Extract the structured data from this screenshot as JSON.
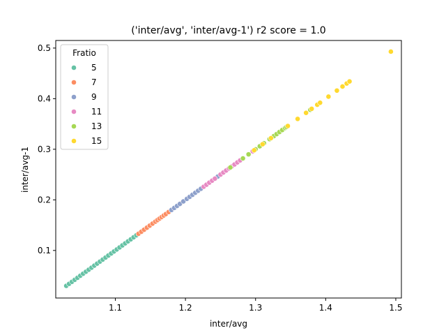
{
  "chart_data": {
    "type": "scatter",
    "title": "('inter/avg', 'inter/avg-1') r2 score = 1.0",
    "xlabel": "inter/avg",
    "ylabel": "inter/avg-1",
    "xlim": [
      1.015,
      1.508
    ],
    "ylim": [
      0.006,
      0.515
    ],
    "xticks": [
      1.1,
      1.2,
      1.3,
      1.4,
      1.5
    ],
    "xtick_labels": [
      "1.1",
      "1.2",
      "1.3",
      "1.4",
      "1.5"
    ],
    "yticks": [
      0.1,
      0.2,
      0.3,
      0.4,
      0.5
    ],
    "ytick_labels": [
      "0.1",
      "0.2",
      "0.3",
      "0.4",
      "0.5"
    ],
    "grid": false,
    "legend": {
      "title": "Fratio",
      "position": "top-left"
    },
    "series": [
      {
        "name": "5",
        "color": "#66c2a5",
        "x": [
          1.03,
          1.034,
          1.038,
          1.042,
          1.046,
          1.05,
          1.054,
          1.058,
          1.062,
          1.066,
          1.07,
          1.074,
          1.078,
          1.082,
          1.086,
          1.09,
          1.094,
          1.098,
          1.102,
          1.106,
          1.11,
          1.114,
          1.118,
          1.122,
          1.126,
          1.13,
          1.14
        ]
      },
      {
        "name": "7",
        "color": "#fc8d62",
        "x": [
          1.133,
          1.137,
          1.141,
          1.145,
          1.149,
          1.153,
          1.157,
          1.16,
          1.163,
          1.166,
          1.169,
          1.172,
          1.176,
          1.18,
          1.193
        ]
      },
      {
        "name": "9",
        "color": "#8da0cb",
        "x": [
          1.18,
          1.184,
          1.188,
          1.192,
          1.197,
          1.202,
          1.206,
          1.21,
          1.214,
          1.218,
          1.222,
          1.246
        ]
      },
      {
        "name": "11",
        "color": "#e78ac3",
        "x": [
          1.226,
          1.23,
          1.234,
          1.238,
          1.242,
          1.25,
          1.254,
          1.258,
          1.262,
          1.266,
          1.27,
          1.274,
          1.278,
          1.282,
          1.296
        ]
      },
      {
        "name": "13",
        "color": "#a6d854",
        "x": [
          1.264,
          1.282,
          1.29,
          1.3,
          1.306,
          1.312,
          1.32,
          1.326,
          1.33,
          1.334,
          1.338,
          1.342,
          1.344,
          1.378
        ]
      },
      {
        "name": "15",
        "color": "#ffd92f",
        "x": [
          1.298,
          1.31,
          1.322,
          1.346,
          1.36,
          1.372,
          1.38,
          1.388,
          1.392,
          1.404,
          1.416,
          1.424,
          1.43,
          1.434,
          1.493
        ]
      }
    ]
  }
}
